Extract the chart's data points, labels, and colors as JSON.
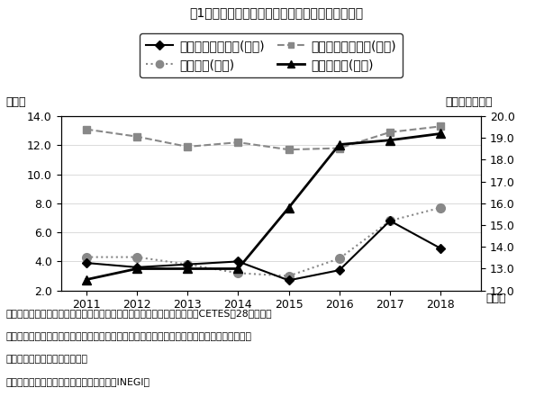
{
  "title": "図1　インフレ、金利、期中平均為替レートの推移",
  "years": [
    2011,
    2012,
    2013,
    2014,
    2015,
    2016,
    2017,
    2018
  ],
  "cpi": [
    3.9,
    3.6,
    3.8,
    4.0,
    2.7,
    3.4,
    6.8,
    4.9
  ],
  "policy_rate": [
    4.3,
    4.3,
    3.8,
    3.2,
    3.0,
    4.2,
    6.8,
    7.7
  ],
  "auto_loan_rate": [
    13.1,
    12.6,
    11.9,
    12.2,
    11.7,
    11.8,
    12.9,
    13.3
  ],
  "exchange_rate": [
    12.5,
    13.0,
    13.0,
    13.0,
    15.8,
    18.7,
    18.9,
    19.2
  ],
  "left_ylim": [
    2.0,
    14.0
  ],
  "right_ylim": [
    12.0,
    20.0
  ],
  "left_yticks": [
    2.0,
    4.0,
    6.0,
    8.0,
    10.0,
    12.0,
    14.0
  ],
  "right_yticks": [
    12.0,
    13.0,
    14.0,
    15.0,
    16.0,
    17.0,
    18.0,
    19.0,
    20.0
  ],
  "ylabel_left": "（％）",
  "ylabel_right": "（ペソ／ドル）",
  "xlabel_label": "（年）",
  "legend_entries": [
    "消費者物価上昇率(左軸)",
    "指標金利(左軸)",
    "自動車ローン金利(左軸)",
    "為替レート(右軸)"
  ],
  "note_line1": "（注）インフレ率は消費者物価指数の前年同月比。指標金利は短期国債（CETES）28日もの利",
  "note_line2": "回りの期中平均。自動車ローンは商業銀行が扱う自動車ローンの平均金利で、メーカー系列ノ",
  "note_line3": "ンバンクなどのローンを除く。",
  "note_line4": "（出所）中央銀行、国立統計地理情報院（INEGI）",
  "cpi_color": "#000000",
  "policy_rate_color": "#888888",
  "auto_loan_color": "#888888",
  "exchange_rate_color": "#000000",
  "background_color": "#ffffff"
}
